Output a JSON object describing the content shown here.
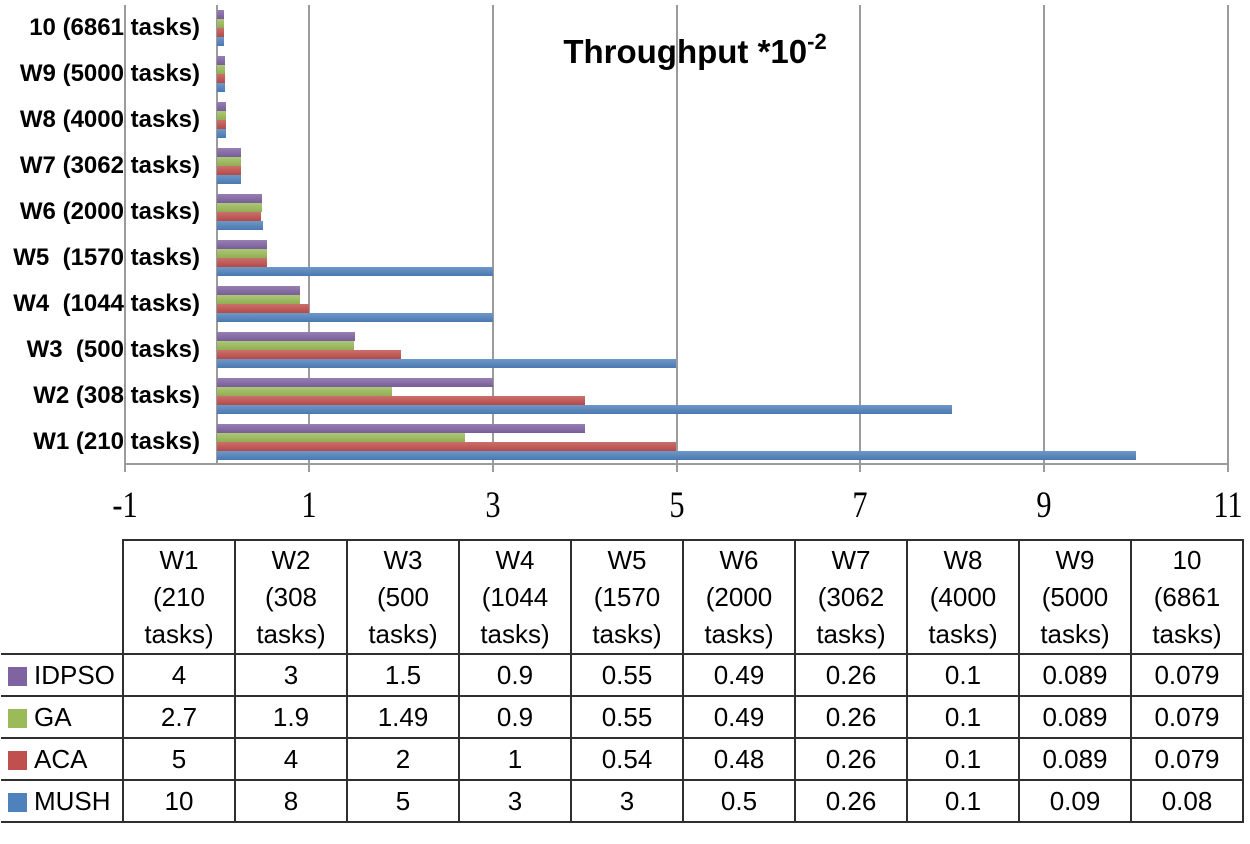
{
  "chart_data": {
    "type": "bar",
    "orientation": "horizontal",
    "title": "Throughput *10^-2",
    "title_main": "Throughput *10",
    "title_exponent": "-2",
    "categories": [
      "W1 (210 tasks)",
      "W2 (308 tasks)",
      "W3  (500 tasks)",
      "W4  (1044 tasks)",
      "W5  (1570 tasks)",
      "W6 (2000 tasks)",
      "W7 (3062 tasks)",
      "W8 (4000 tasks)",
      "W9 (5000 tasks)",
      "10 (6861 tasks)"
    ],
    "category_display_order": "reversed (W1 at bottom, 10 at top)",
    "series": [
      {
        "name": "IDPSO",
        "color": "#8064A2",
        "values": [
          4,
          3,
          1.5,
          0.9,
          0.55,
          0.49,
          0.26,
          0.1,
          0.089,
          0.079
        ]
      },
      {
        "name": "GA",
        "color": "#9BBB59",
        "values": [
          2.7,
          1.9,
          1.49,
          0.9,
          0.55,
          0.49,
          0.26,
          0.1,
          0.089,
          0.079
        ]
      },
      {
        "name": "ACA",
        "color": "#C0504D",
        "values": [
          5,
          4,
          2,
          1,
          0.54,
          0.48,
          0.26,
          0.1,
          0.089,
          0.079
        ]
      },
      {
        "name": "MUSH",
        "color": "#4F81BD",
        "values": [
          10,
          8,
          5,
          3,
          3,
          0.5,
          0.26,
          0.1,
          0.09,
          0.08
        ]
      }
    ],
    "x_axis": {
      "min": -1,
      "max": 11,
      "tick_values": [
        -1,
        1,
        3,
        5,
        7,
        9,
        11
      ],
      "tick_labels": [
        "-1",
        "1",
        "3",
        "5",
        "7",
        "9",
        "11"
      ]
    },
    "grid": true,
    "gridline_color": "#9b9b9b",
    "legend_position": "in-table-row-labels"
  },
  "table": {
    "corner": "",
    "column_headers": [
      "W1\n(210\ntasks)",
      "W2\n(308\ntasks)",
      "W3\n(500\ntasks)",
      "W4\n(1044\ntasks)",
      "W5\n(1570\ntasks)",
      "W6\n(2000\ntasks)",
      "W7\n(3062\ntasks)",
      "W8\n(4000\ntasks)",
      "W9\n(5000\ntasks)",
      "10\n(6861\ntasks)"
    ],
    "rows": [
      {
        "label": "IDPSO",
        "color": "#8064A2",
        "values": [
          "4",
          "3",
          "1.5",
          "0.9",
          "0.55",
          "0.49",
          "0.26",
          "0.1",
          "0.089",
          "0.079"
        ]
      },
      {
        "label": "GA",
        "color": "#9BBB59",
        "values": [
          "2.7",
          "1.9",
          "1.49",
          "0.9",
          "0.55",
          "0.49",
          "0.26",
          "0.1",
          "0.089",
          "0.079"
        ]
      },
      {
        "label": "ACA",
        "color": "#C0504D",
        "values": [
          "5",
          "4",
          "2",
          "1",
          "0.54",
          "0.48",
          "0.26",
          "0.1",
          "0.089",
          "0.079"
        ]
      },
      {
        "label": "MUSH",
        "color": "#4F81BD",
        "values": [
          "10",
          "8",
          "5",
          "3",
          "3",
          "0.5",
          "0.26",
          "0.1",
          "0.09",
          "0.08"
        ]
      }
    ]
  }
}
